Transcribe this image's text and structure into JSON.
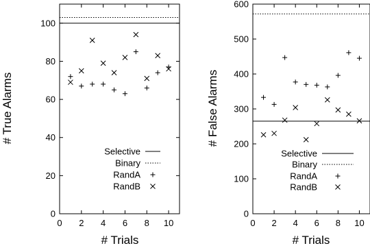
{
  "chart_data": [
    {
      "type": "scatter",
      "xlabel": "# Trials",
      "ylabel": "# True Alarms",
      "xlim": [
        0,
        11
      ],
      "ylim": [
        0,
        110
      ],
      "xticks": [
        "0",
        "2",
        "4",
        "6",
        "8",
        "10"
      ],
      "yticks": [
        "0",
        "20",
        "40",
        "60",
        "80",
        "100"
      ],
      "legend_position": "lower-right",
      "series": [
        {
          "name": "Selective",
          "style": "solid-line",
          "y": 100
        },
        {
          "name": "Binary",
          "style": "dotted-line",
          "y": 103
        },
        {
          "name": "RandA",
          "style": "plus-marker",
          "x": [
            1,
            2,
            3,
            4,
            5,
            6,
            7,
            8,
            9,
            10
          ],
          "y": [
            72,
            67,
            68,
            68,
            65,
            63,
            85,
            66,
            74,
            77
          ]
        },
        {
          "name": "RandB",
          "style": "x-marker",
          "x": [
            1,
            2,
            3,
            4,
            5,
            6,
            7,
            8,
            9,
            10
          ],
          "y": [
            69,
            75,
            91,
            79,
            74,
            82,
            94,
            71,
            83,
            76
          ]
        }
      ]
    },
    {
      "type": "scatter",
      "xlabel": "# Trials",
      "ylabel": "# False Alarms",
      "xlim": [
        0,
        11
      ],
      "ylim": [
        0,
        600
      ],
      "xticks": [
        "0",
        "2",
        "4",
        "6",
        "8",
        "10"
      ],
      "yticks": [
        "0",
        "100",
        "200",
        "300",
        "400",
        "500",
        "600"
      ],
      "legend_position": "lower-right",
      "series": [
        {
          "name": "Selective",
          "style": "solid-line",
          "y": 265
        },
        {
          "name": "Binary",
          "style": "dotted-line",
          "y": 572
        },
        {
          "name": "RandA",
          "style": "plus-marker",
          "x": [
            1,
            2,
            3,
            4,
            5,
            6,
            7,
            8,
            9,
            10
          ],
          "y": [
            333,
            313,
            447,
            377,
            370,
            368,
            363,
            396,
            461,
            445
          ]
        },
        {
          "name": "RandB",
          "style": "x-marker",
          "x": [
            1,
            2,
            3,
            4,
            5,
            6,
            7,
            8,
            9,
            10
          ],
          "y": [
            226,
            230,
            268,
            304,
            212,
            258,
            326,
            297,
            285,
            266
          ]
        }
      ]
    }
  ]
}
